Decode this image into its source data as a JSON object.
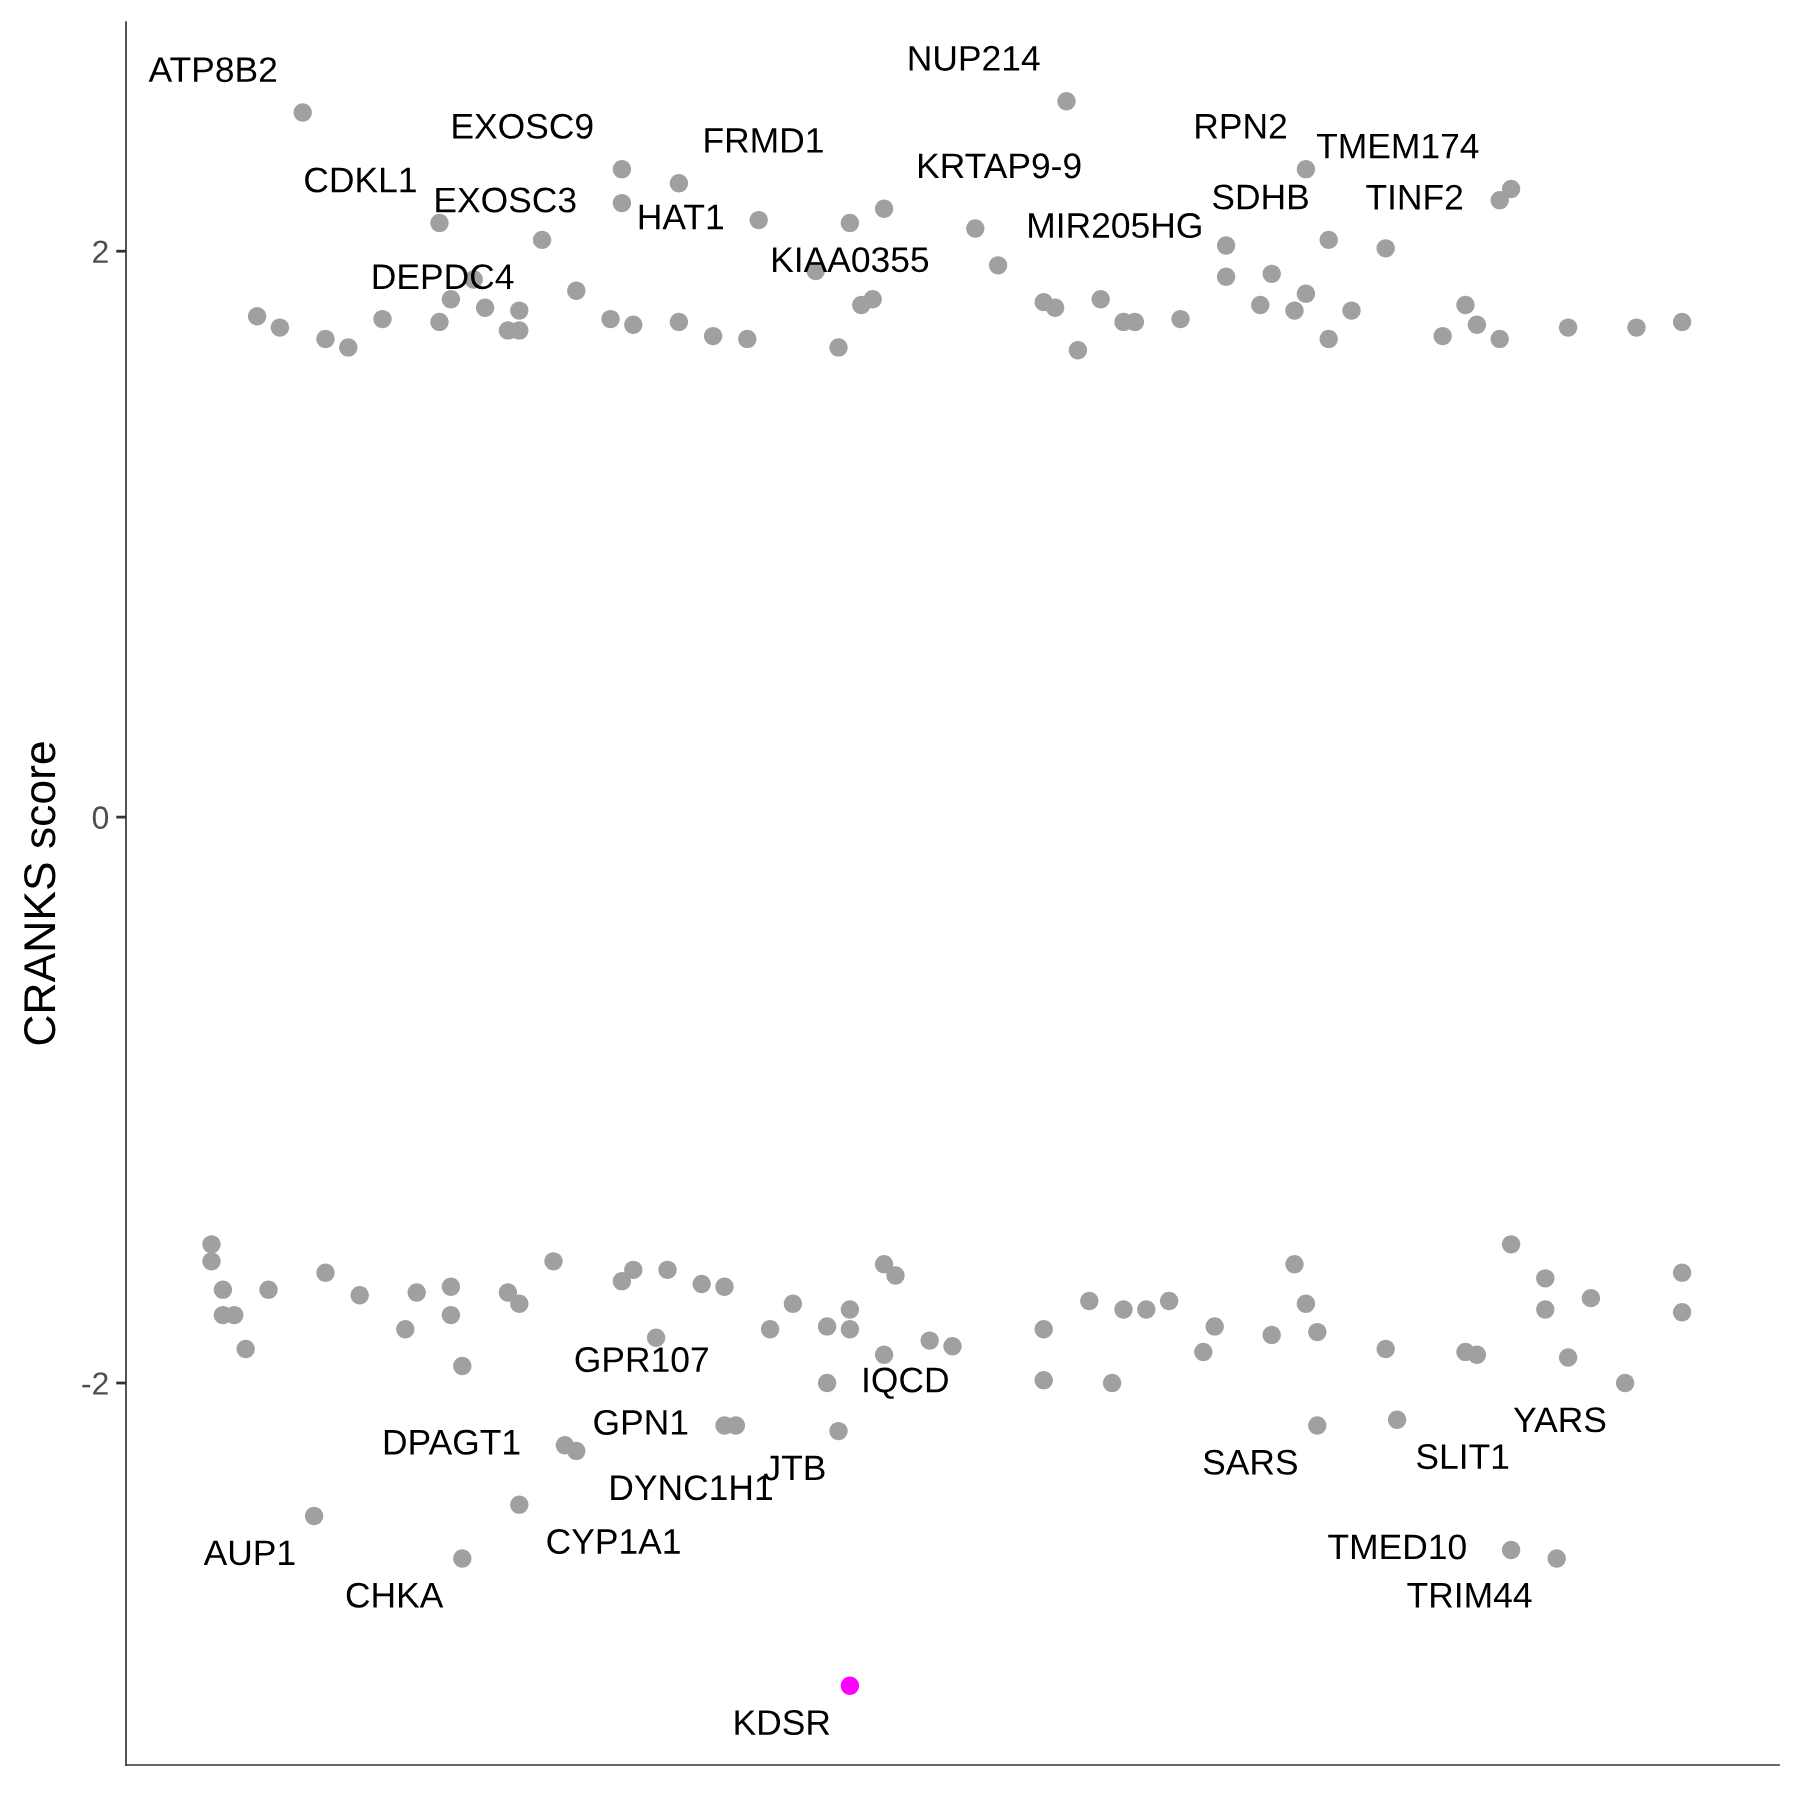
{
  "chart_data": {
    "type": "scatter",
    "ylabel": "CRANKS score",
    "ylim": [
      -3.35,
      2.81
    ],
    "yticks": [
      -2,
      0,
      2
    ],
    "tick_labels": "y",
    "marker": "circle",
    "categories": [
      null,
      null,
      null,
      null,
      null,
      null,
      null,
      null,
      null,
      null,
      null,
      null,
      null,
      null,
      null,
      null,
      null,
      null,
      null,
      null,
      null,
      null,
      null,
      null,
      null,
      null,
      null,
      null,
      null,
      null,
      null,
      null,
      null,
      null,
      null,
      null,
      null,
      null,
      null,
      null,
      null,
      null,
      null,
      null,
      null,
      null,
      null,
      null,
      null,
      null,
      null,
      null,
      null,
      null,
      null,
      null,
      null,
      null,
      null,
      null,
      null,
      null,
      null,
      null,
      null,
      null,
      null,
      null,
      null,
      null,
      null,
      null,
      null,
      null,
      null,
      null,
      null,
      null,
      null,
      null,
      null,
      null,
      null,
      null,
      null,
      null,
      null,
      null,
      null,
      null,
      null,
      null,
      null,
      null,
      null,
      null,
      null,
      null,
      null,
      null,
      null,
      null,
      null,
      null,
      null,
      null,
      null,
      null,
      null,
      null,
      null,
      null,
      null,
      null,
      null,
      null,
      null,
      null,
      null,
      null,
      null,
      null,
      null,
      null,
      null,
      null,
      null,
      null,
      null,
      null,
      null,
      null,
      null,
      null,
      null,
      null,
      null,
      null,
      null,
      null,
      null,
      null,
      null,
      null,
      null
    ],
    "series": [
      {
        "color": "#a0a0a0",
        "values": [
          null,
          null,
          null,
          null,
          null,
          null,
          null,
          null,
          null,
          null,
          null,
          1.77,
          null,
          1.73,
          null,
          2.49,
          null,
          1.69,
          null,
          1.66,
          null,
          null,
          1.76,
          null,
          null,
          null,
          null,
          2.1,
          1.83,
          null,
          1.9,
          1.8,
          null,
          1.72,
          1.79,
          null,
          2.04,
          null,
          null,
          1.86,
          null,
          null,
          1.76,
          2.29,
          1.74,
          null,
          null,
          null,
          2.24,
          null,
          null,
          1.7,
          null,
          null,
          1.69,
          2.11,
          null,
          null,
          null,
          null,
          1.93,
          null,
          1.66,
          2.1,
          1.81,
          1.83,
          2.15,
          null,
          null,
          null,
          null,
          null,
          null,
          null,
          2.08,
          null,
          1.95,
          null,
          null,
          null,
          1.82,
          1.8,
          2.53,
          1.65,
          null,
          1.83,
          null,
          1.75,
          1.75,
          null,
          null,
          null,
          1.76,
          null,
          null,
          null,
          2.02,
          null,
          null,
          1.81,
          1.92,
          null,
          1.79,
          2.29,
          null,
          2.04,
          null,
          1.79,
          null,
          null,
          2.01,
          null,
          null,
          null,
          null,
          1.7,
          null,
          1.81,
          1.74,
          null,
          2.18,
          2.22,
          null,
          null,
          null,
          null,
          1.73,
          null,
          null,
          null,
          null,
          null,
          1.73,
          null,
          null,
          null,
          1.75,
          null,
          null,
          null,
          null,
          null,
          null,
          null,
          null
        ],
        "value_labels": [
          null,
          null,
          null,
          null,
          null,
          null,
          null,
          null,
          null,
          null,
          null,
          null,
          null,
          null,
          null,
          "ATP8B2",
          null,
          null,
          null,
          null,
          null,
          null,
          null,
          null,
          null,
          null,
          null,
          "CDKL1",
          null,
          null,
          null,
          null,
          null,
          null,
          null,
          null,
          "DEPDC4",
          null,
          null,
          null,
          null,
          null,
          null,
          "EXOSC9",
          null,
          null,
          null,
          null,
          "FRMD1",
          null,
          null,
          null,
          null,
          null,
          null,
          "HAT1",
          null,
          null,
          null,
          null,
          null,
          null,
          null,
          "KIAA0355",
          null,
          null,
          "KRTAP9-9",
          null,
          null,
          null,
          null,
          null,
          null,
          null,
          "MIR205HG",
          null,
          null,
          null,
          null,
          null,
          null,
          null,
          "NUP214",
          null,
          null,
          null,
          null,
          null,
          null,
          null,
          null,
          null,
          null,
          null,
          null,
          null,
          null,
          null,
          null,
          null,
          null,
          null,
          null,
          "RPN2",
          null,
          "SDHB",
          null,
          null,
          null,
          null,
          null,
          null,
          null,
          null,
          null,
          null,
          null,
          null,
          null,
          null,
          "TINF2",
          "TMEM174",
          null,
          null,
          null,
          null,
          null,
          null,
          null,
          null,
          null,
          null,
          null,
          null,
          null,
          null,
          null,
          null,
          null,
          null,
          null,
          null,
          null,
          null,
          null
        ]
      },
      {
        "color": "#a0a0a0",
        "values": [
          null,
          null,
          null,
          null,
          null,
          null,
          null,
          null,
          null,
          null,
          null,
          null,
          null,
          null,
          null,
          null,
          null,
          null,
          null,
          null,
          null,
          null,
          null,
          null,
          null,
          null,
          null,
          1.75,
          null,
          null,
          null,
          null,
          null,
          null,
          1.72,
          null,
          null,
          null,
          null,
          null,
          null,
          null,
          null,
          2.17,
          null,
          null,
          null,
          null,
          1.75,
          null,
          null,
          null,
          null,
          null,
          null,
          null,
          null,
          null,
          null,
          null,
          null,
          null,
          null,
          null,
          null,
          null,
          null,
          null,
          null,
          null,
          null,
          null,
          null,
          null,
          null,
          null,
          null,
          null,
          null,
          null,
          null,
          null,
          null,
          null,
          null,
          null,
          null,
          null,
          null,
          null,
          null,
          null,
          null,
          null,
          null,
          null,
          1.91,
          null,
          null,
          null,
          null,
          null,
          null,
          1.85,
          null,
          1.69,
          null,
          null,
          null,
          null,
          null,
          null,
          null,
          null,
          null,
          null,
          null,
          null,
          null,
          null,
          1.69,
          null,
          null,
          null,
          null,
          null,
          null,
          null,
          null,
          null,
          null,
          null,
          null,
          null,
          null,
          null,
          null,
          null,
          null,
          null,
          null,
          null,
          null,
          null,
          null
        ],
        "value_labels": [
          null,
          null,
          null,
          null,
          null,
          null,
          null,
          null,
          null,
          null,
          null,
          null,
          null,
          null,
          null,
          null,
          null,
          null,
          null,
          null,
          null,
          null,
          null,
          null,
          null,
          null,
          null,
          null,
          null,
          null,
          null,
          null,
          null,
          null,
          null,
          null,
          null,
          null,
          null,
          null,
          null,
          null,
          null,
          "EXOSC3",
          null,
          null,
          null,
          null,
          null,
          null,
          null,
          null,
          null,
          null,
          null,
          null,
          null,
          null,
          null,
          null,
          null,
          null,
          null,
          null,
          null,
          null,
          null,
          null,
          null,
          null,
          null,
          null,
          null,
          null,
          null,
          null,
          null,
          null,
          null,
          null,
          null,
          null,
          null,
          null,
          null,
          null,
          null,
          null,
          null,
          null,
          null,
          null,
          null,
          null,
          null,
          null,
          null,
          null,
          null,
          null,
          null,
          null,
          null,
          null,
          null,
          null,
          null,
          null,
          null,
          null,
          null,
          null,
          null,
          null,
          null,
          null,
          null,
          null,
          null,
          null,
          null,
          null,
          null,
          null,
          null,
          null,
          null,
          null,
          null,
          null,
          null,
          null,
          null,
          null,
          null,
          null,
          null,
          null,
          null,
          null,
          null,
          null,
          null,
          null,
          null
        ]
      },
      {
        "color": "#a0a0a0",
        "values": [
          null,
          null,
          null,
          null,
          null,
          null,
          null,
          -1.51,
          -1.67,
          -1.76,
          -1.88,
          null,
          -1.67,
          null,
          null,
          null,
          -2.47,
          -1.61,
          null,
          null,
          -1.69,
          null,
          null,
          null,
          -1.81,
          -1.68,
          null,
          null,
          -1.76,
          -2.62,
          null,
          null,
          null,
          -1.68,
          -2.43,
          null,
          null,
          -1.57,
          -2.22,
          -2.24,
          null,
          null,
          null,
          -1.64,
          -1.6,
          null,
          -1.84,
          -1.6,
          null,
          null,
          -1.65,
          null,
          -2.15,
          -2.15,
          null,
          null,
          -1.81,
          null,
          -1.72,
          null,
          null,
          -2.0,
          -2.17,
          -1.81,
          null,
          null,
          -1.9,
          -1.62,
          null,
          null,
          -1.85,
          null,
          -1.87,
          null,
          null,
          null,
          null,
          null,
          null,
          null,
          -1.99,
          null,
          null,
          null,
          -1.71,
          null,
          -2.0,
          -1.74,
          null,
          -1.74,
          null,
          -1.71,
          null,
          null,
          -1.89,
          -1.8,
          null,
          null,
          null,
          null,
          -1.83,
          null,
          -1.58,
          -1.72,
          -2.15,
          null,
          null,
          null,
          null,
          null,
          -1.88,
          -2.13,
          null,
          null,
          null,
          null,
          null,
          -1.89,
          -1.9,
          null,
          null,
          -2.59,
          null,
          null,
          -1.63,
          -2.62,
          -1.91,
          null,
          -1.7,
          null,
          null,
          -2.0,
          null,
          null,
          null,
          null,
          -1.61,
          null,
          null,
          null,
          null,
          null,
          null,
          null,
          null
        ],
        "value_labels": [
          null,
          null,
          null,
          null,
          null,
          null,
          null,
          null,
          null,
          null,
          null,
          null,
          null,
          null,
          null,
          null,
          "AUP1",
          null,
          null,
          null,
          null,
          null,
          null,
          null,
          null,
          null,
          null,
          null,
          null,
          "CHKA",
          null,
          null,
          null,
          null,
          "CYP1A1",
          null,
          null,
          null,
          "DPAGT1",
          "DYNC1H1",
          null,
          null,
          null,
          null,
          null,
          null,
          null,
          null,
          null,
          null,
          null,
          null,
          "GPN1",
          "GPR107",
          null,
          null,
          null,
          null,
          null,
          null,
          null,
          "IQCD",
          "JTB",
          null,
          null,
          null,
          null,
          null,
          null,
          null,
          null,
          null,
          null,
          null,
          null,
          null,
          null,
          null,
          null,
          null,
          null,
          null,
          null,
          null,
          null,
          null,
          null,
          null,
          null,
          null,
          null,
          null,
          null,
          null,
          null,
          null,
          null,
          null,
          null,
          null,
          null,
          null,
          null,
          null,
          "SARS",
          null,
          null,
          null,
          null,
          null,
          null,
          "SLIT1",
          null,
          null,
          null,
          null,
          null,
          null,
          null,
          null,
          null,
          "TMED10",
          null,
          null,
          null,
          "TRIM44",
          null,
          null,
          null,
          null,
          null,
          "YARS",
          null,
          null,
          null,
          null,
          null,
          null,
          null,
          null,
          null,
          null,
          null,
          null,
          null
        ]
      },
      {
        "color": "#a0a0a0",
        "values": [
          null,
          null,
          null,
          null,
          null,
          null,
          null,
          -1.57,
          -1.76,
          null,
          null,
          null,
          null,
          null,
          null,
          null,
          null,
          null,
          null,
          null,
          null,
          null,
          null,
          null,
          null,
          null,
          null,
          null,
          -1.66,
          -1.94,
          null,
          null,
          null,
          null,
          -1.72,
          null,
          null,
          null,
          null,
          null,
          null,
          null,
          null,
          null,
          null,
          null,
          null,
          null,
          null,
          null,
          null,
          null,
          -1.66,
          null,
          null,
          null,
          null,
          null,
          null,
          null,
          null,
          -1.8,
          null,
          -1.74,
          null,
          null,
          -1.58,
          null,
          null,
          null,
          null,
          null,
          null,
          null,
          null,
          null,
          null,
          null,
          null,
          null,
          -1.81,
          null,
          null,
          null,
          null,
          null,
          null,
          null,
          null,
          null,
          null,
          null,
          null,
          null,
          null,
          null,
          null,
          null,
          null,
          null,
          null,
          null,
          null,
          null,
          -1.82,
          null,
          null,
          null,
          null,
          null,
          null,
          null,
          null,
          null,
          null,
          null,
          null,
          null,
          null,
          null,
          null,
          -1.51,
          null,
          null,
          -1.74,
          null,
          null,
          null,
          null,
          null,
          null,
          null,
          null,
          null,
          null,
          null,
          -1.75,
          null,
          null,
          null,
          null,
          null,
          null,
          null,
          null
        ]
      },
      {
        "color": "#ff00ff",
        "values": [
          null,
          null,
          null,
          null,
          null,
          null,
          null,
          null,
          null,
          null,
          null,
          null,
          null,
          null,
          null,
          null,
          null,
          null,
          null,
          null,
          null,
          null,
          null,
          null,
          null,
          null,
          null,
          null,
          null,
          null,
          null,
          null,
          null,
          null,
          null,
          null,
          null,
          null,
          null,
          null,
          null,
          null,
          null,
          null,
          null,
          null,
          null,
          null,
          null,
          null,
          null,
          null,
          null,
          null,
          null,
          null,
          null,
          null,
          null,
          null,
          null,
          null,
          null,
          -3.07,
          null,
          null,
          null,
          null,
          null,
          null,
          null,
          null,
          null,
          null,
          null,
          null,
          null,
          null,
          null,
          null,
          null,
          null,
          null,
          null,
          null,
          null,
          null,
          null,
          null,
          null,
          null,
          null,
          null,
          null,
          null,
          null,
          null,
          null,
          null,
          null,
          null,
          null,
          null,
          null,
          null,
          null,
          null,
          null,
          null,
          null,
          null,
          null,
          null,
          null,
          null,
          null,
          null,
          null,
          null,
          null,
          null,
          null,
          null,
          null,
          null,
          null,
          null,
          null,
          null,
          null,
          null,
          null,
          null,
          null,
          null,
          null,
          null,
          null,
          null,
          null,
          null,
          null,
          null,
          null,
          null
        ],
        "value_labels": [
          null,
          null,
          null,
          null,
          null,
          null,
          null,
          null,
          null,
          null,
          null,
          null,
          null,
          null,
          null,
          null,
          null,
          null,
          null,
          null,
          null,
          null,
          null,
          null,
          null,
          null,
          null,
          null,
          null,
          null,
          null,
          null,
          null,
          null,
          null,
          null,
          null,
          null,
          null,
          null,
          null,
          null,
          null,
          null,
          null,
          null,
          null,
          null,
          null,
          null,
          null,
          null,
          null,
          null,
          null,
          null,
          null,
          null,
          null,
          null,
          null,
          null,
          null,
          "KDSR",
          null,
          null,
          null,
          null,
          null,
          null,
          null,
          null,
          null,
          null,
          null,
          null,
          null,
          null,
          null,
          null,
          null,
          null,
          null,
          null,
          null,
          null,
          null,
          null,
          null,
          null,
          null,
          null,
          null,
          null,
          null,
          null,
          null,
          null,
          null,
          null,
          null,
          null,
          null,
          null,
          null,
          null,
          null,
          null,
          null,
          null,
          null,
          null,
          null,
          null,
          null,
          null,
          null,
          null,
          null,
          null,
          null,
          null,
          null,
          null,
          null,
          null,
          null,
          null,
          null,
          null,
          null,
          null,
          null,
          null,
          null,
          null,
          null,
          null,
          null,
          null,
          null,
          null,
          null,
          null,
          null
        ]
      }
    ]
  }
}
